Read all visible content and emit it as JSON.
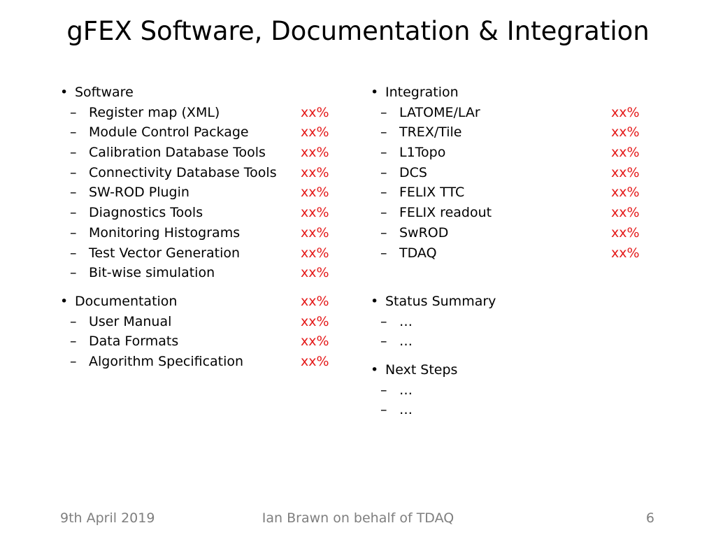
{
  "slide": {
    "title": "gFEX Software, Documentation & Integration"
  },
  "left": {
    "software": {
      "label": "Software",
      "items": [
        {
          "label": "Register map (XML)",
          "status": "xx%"
        },
        {
          "label": "Module Control Package",
          "status": "xx%"
        },
        {
          "label": "Calibration Database Tools",
          "status": "xx%"
        },
        {
          "label": "Connectivity Database Tools",
          "status": "xx%"
        },
        {
          "label": "SW-ROD Plugin",
          "status": "xx%"
        },
        {
          "label": "Diagnostics Tools",
          "status": "xx%"
        },
        {
          "label": "Monitoring Histograms",
          "status": "xx%"
        },
        {
          "label": "Test Vector Generation",
          "status": "xx%"
        },
        {
          "label": "Bit-wise simulation",
          "status": "xx%"
        }
      ]
    },
    "documentation": {
      "label": "Documentation",
      "status": "xx%",
      "items": [
        {
          "label": "User Manual",
          "status": "xx%"
        },
        {
          "label": "Data Formats",
          "status": "xx%"
        },
        {
          "label": "Algorithm Specification",
          "status": "xx%"
        }
      ]
    }
  },
  "right": {
    "integration": {
      "label": "Integration",
      "items": [
        {
          "label": "LATOME/LAr",
          "status": "xx%"
        },
        {
          "label": "TREX/Tile",
          "status": "xx%"
        },
        {
          "label": "L1Topo",
          "status": "xx%"
        },
        {
          "label": "DCS",
          "status": "xx%"
        },
        {
          "label": "FELIX TTC",
          "status": "xx%"
        },
        {
          "label": "FELIX readout",
          "status": "xx%"
        },
        {
          "label": "SwROD",
          "status": "xx%"
        },
        {
          "label": "TDAQ",
          "status": "xx%"
        }
      ]
    },
    "status_summary": {
      "label": "Status Summary",
      "items": [
        "…",
        "…"
      ]
    },
    "next_steps": {
      "label": "Next Steps",
      "items": [
        "…",
        "…"
      ]
    }
  },
  "footer": {
    "date": "9th April 2019",
    "author": "Ian Brawn on behalf of TDAQ",
    "page": "6"
  },
  "colors": {
    "status": "#e41a1a",
    "footer": "#7f7f7f"
  }
}
